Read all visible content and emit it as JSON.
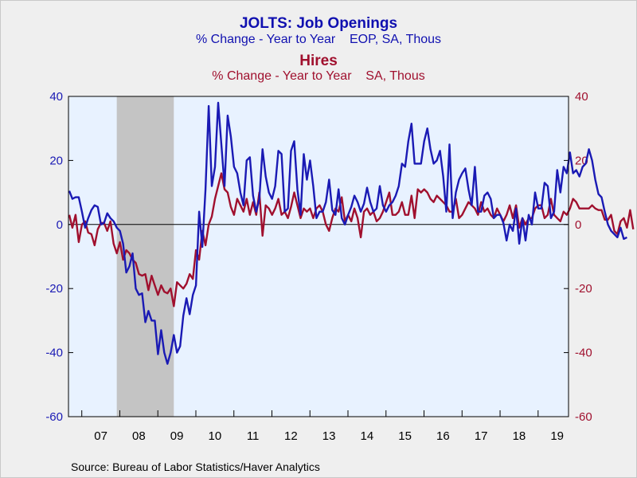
{
  "titles": {
    "title1": "JOLTS: Job Openings",
    "subtitle1": "% Change - Year to Year    EOP, SA, Thous",
    "title2": "Hires",
    "subtitle2": "% Change - Year to Year    SA, Thous"
  },
  "source": "Source:  Bureau of Labor Statistics/Haver Analytics",
  "colors": {
    "openings": "#1a1ab4",
    "hires": "#a0102e",
    "plot_bg": "#e8f2ff",
    "recession": "#c4c4c4"
  },
  "chart_data": {
    "type": "line",
    "ylim": [
      -60,
      40
    ],
    "y_ticks": [
      40,
      20,
      0,
      -20,
      -40,
      -60
    ],
    "x_range": [
      2006.65,
      2019.8
    ],
    "x_tick_labels": [
      "07",
      "08",
      "09",
      "10",
      "11",
      "12",
      "13",
      "14",
      "15",
      "16",
      "17",
      "18",
      "19"
    ],
    "recession": [
      2007.92,
      2009.42
    ],
    "series": [
      {
        "name": "JOLTS: Job Openings",
        "axis": "left",
        "start": 2006.67,
        "step": 0.0833333,
        "values": [
          10.5,
          8,
          8.5,
          8.5,
          4,
          -1,
          2,
          4.5,
          6,
          5.5,
          0,
          0.5,
          3.5,
          2,
          1,
          -1,
          -2,
          -6,
          -15,
          -13,
          -9,
          -20,
          -22,
          -21.5,
          -30.5,
          -27,
          -30,
          -30,
          -40.5,
          -33,
          -40,
          -43.5,
          -40,
          -34.5,
          -40,
          -38,
          -28.5,
          -23,
          -28,
          -22,
          -19,
          4,
          -7,
          11,
          37,
          12,
          18,
          38,
          25,
          12,
          34,
          27.5,
          18,
          16,
          10,
          6,
          20,
          21,
          9,
          4,
          8,
          23.5,
          15,
          10,
          8,
          12,
          23,
          22,
          4,
          5,
          23,
          26,
          11,
          3,
          22,
          14,
          20,
          12,
          2,
          4,
          4,
          7,
          14,
          4.5,
          3,
          11,
          2,
          0,
          3,
          5.5,
          9,
          7,
          4,
          6.5,
          11.5,
          7,
          4,
          5,
          12,
          6,
          4,
          6,
          7,
          9,
          12,
          19,
          18,
          26,
          31.5,
          19,
          19,
          19,
          26,
          30,
          23.5,
          19,
          20,
          23,
          15,
          4,
          25,
          2,
          10,
          14,
          16,
          17.5,
          11,
          6,
          18,
          4,
          4,
          9,
          10,
          8,
          2,
          3,
          3,
          0.5,
          -5,
          0,
          -2,
          5,
          -6,
          2,
          -5,
          3,
          0,
          10,
          5,
          5,
          13,
          12,
          2,
          4,
          17,
          10,
          18,
          16,
          22.5,
          16,
          17,
          15,
          18,
          19,
          23.5,
          20,
          14,
          9.5,
          8.5,
          4,
          0,
          -2,
          -3,
          -4,
          -1,
          -4.5,
          -4
        ]
      },
      {
        "name": "Hires",
        "axis": "right",
        "start": 2006.67,
        "step": 0.0833333,
        "values": [
          3,
          -1,
          3,
          -5.5,
          0,
          1,
          -2.5,
          -3,
          -6.5,
          -1.5,
          0.5,
          0.5,
          -2,
          1,
          -6,
          -9,
          -5.5,
          -11,
          -8,
          -9,
          -11,
          -12,
          -15.5,
          -16,
          -15.5,
          -20.5,
          -16,
          -19,
          -22,
          -19,
          -21,
          -21.5,
          -20,
          -25.5,
          -18,
          -19,
          -20,
          -18.5,
          -15.5,
          -17,
          -8,
          -11,
          -2,
          -6.5,
          0,
          2.5,
          8,
          12,
          16,
          11,
          10,
          5.5,
          3,
          8,
          6,
          4,
          8,
          3,
          7,
          3,
          10,
          -3.5,
          6,
          5,
          3,
          5,
          8,
          3,
          4,
          2,
          5.5,
          10,
          6,
          2,
          5,
          4,
          5,
          2,
          5,
          6,
          4,
          0,
          -2,
          2,
          5,
          4,
          8.5,
          1,
          3,
          1,
          5,
          2,
          -4,
          4,
          5,
          3,
          4,
          1,
          2,
          4,
          7,
          10,
          3,
          3,
          4,
          7,
          3,
          3,
          9,
          2,
          11,
          10,
          11,
          10,
          8,
          7,
          9,
          8,
          7,
          6,
          4,
          4,
          8,
          2,
          3,
          5,
          7,
          6,
          5,
          3,
          7,
          4,
          5,
          3,
          2,
          5,
          3,
          1,
          3,
          6,
          2,
          6,
          -1,
          2,
          0,
          2,
          2,
          5,
          6,
          6,
          2,
          3,
          8,
          3,
          2,
          1,
          4,
          3,
          5,
          8,
          7,
          5,
          5,
          5,
          5,
          6,
          5,
          4.5,
          4.5,
          1.5,
          1.5,
          3,
          -2,
          -3,
          1,
          2,
          -1,
          4.5,
          -1.5
        ]
      }
    ]
  }
}
